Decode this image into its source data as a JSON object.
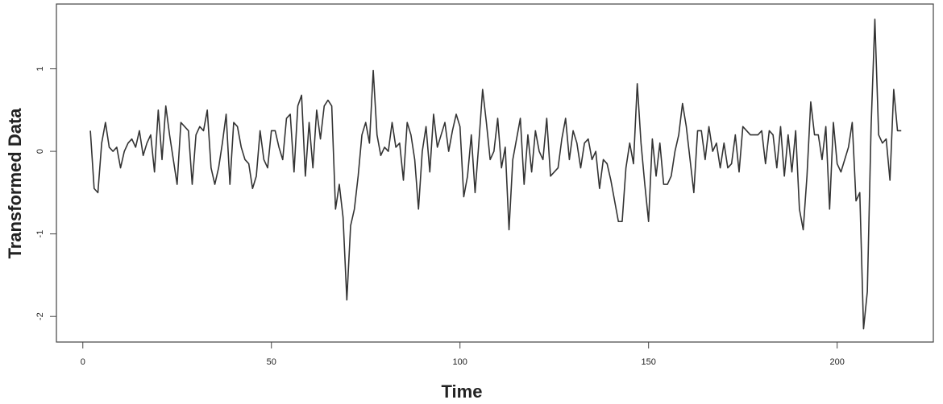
{
  "chart_data": {
    "type": "line",
    "x_label": "Time",
    "y_label": "Transformed Data",
    "xlim": [
      -7,
      225.5
    ],
    "ylim": [
      -2.31,
      1.785
    ],
    "xticks": [
      0,
      50,
      100,
      150,
      200
    ],
    "yticks": [
      -2,
      -1,
      0,
      1
    ],
    "series": [
      {
        "color": "#333333",
        "x": [
          2,
          3,
          4,
          5,
          6,
          7,
          8,
          9,
          10,
          11,
          12,
          13,
          14,
          15,
          16,
          17,
          18,
          19,
          20,
          21,
          22,
          23,
          24,
          25,
          26,
          27,
          28,
          29,
          30,
          31,
          32,
          33,
          34,
          35,
          36,
          37,
          38,
          39,
          40,
          41,
          42,
          43,
          44,
          45,
          46,
          47,
          48,
          49,
          50,
          51,
          52,
          53,
          54,
          55,
          56,
          57,
          58,
          59,
          60,
          61,
          62,
          63,
          64,
          65,
          66,
          67,
          68,
          69,
          70,
          71,
          72,
          73,
          74,
          75,
          76,
          77,
          78,
          79,
          80,
          81,
          82,
          83,
          84,
          85,
          86,
          87,
          88,
          89,
          90,
          91,
          92,
          93,
          94,
          95,
          96,
          97,
          98,
          99,
          100,
          101,
          102,
          103,
          104,
          105,
          106,
          107,
          108,
          109,
          110,
          111,
          112,
          113,
          114,
          115,
          116,
          117,
          118,
          119,
          120,
          121,
          122,
          123,
          124,
          125,
          126,
          127,
          128,
          129,
          130,
          131,
          132,
          133,
          134,
          135,
          136,
          137,
          138,
          139,
          140,
          141,
          142,
          143,
          144,
          145,
          146,
          147,
          148,
          149,
          150,
          151,
          152,
          153,
          154,
          155,
          156,
          157,
          158,
          159,
          160,
          161,
          162,
          163,
          164,
          165,
          166,
          167,
          168,
          169,
          170,
          171,
          172,
          173,
          174,
          175,
          176,
          177,
          178,
          179,
          180,
          181,
          182,
          183,
          184,
          185,
          186,
          187,
          188,
          189,
          190,
          191,
          192,
          193,
          194,
          195,
          196,
          197,
          198,
          199,
          200,
          201,
          202,
          203,
          204,
          205,
          206,
          207,
          208,
          209,
          210,
          211,
          212,
          213,
          214,
          215,
          216,
          217
        ],
        "values": [
          0.25,
          -0.45,
          -0.5,
          0.1,
          0.35,
          0.05,
          0.0,
          0.05,
          -0.2,
          0.0,
          0.1,
          0.15,
          0.05,
          0.25,
          -0.05,
          0.1,
          0.2,
          -0.25,
          0.5,
          -0.1,
          0.55,
          0.2,
          -0.1,
          -0.4,
          0.35,
          0.3,
          0.25,
          -0.4,
          0.2,
          0.3,
          0.25,
          0.5,
          -0.2,
          -0.4,
          -0.2,
          0.1,
          0.45,
          -0.4,
          0.35,
          0.3,
          0.05,
          -0.1,
          -0.15,
          -0.45,
          -0.3,
          0.25,
          -0.1,
          -0.2,
          0.25,
          0.25,
          0.05,
          -0.1,
          0.4,
          0.45,
          -0.25,
          0.55,
          0.68,
          -0.3,
          0.35,
          -0.2,
          0.5,
          0.15,
          0.55,
          0.62,
          0.55,
          -0.7,
          -0.4,
          -0.8,
          -1.8,
          -0.9,
          -0.7,
          -0.3,
          0.2,
          0.35,
          0.1,
          0.98,
          0.2,
          -0.05,
          0.05,
          0.0,
          0.35,
          0.05,
          0.1,
          -0.35,
          0.35,
          0.2,
          -0.1,
          -0.7,
          0.0,
          0.3,
          -0.25,
          0.45,
          0.05,
          0.2,
          0.35,
          0.0,
          0.25,
          0.45,
          0.3,
          -0.55,
          -0.3,
          0.2,
          -0.5,
          0.1,
          0.75,
          0.35,
          -0.1,
          0.0,
          0.4,
          -0.2,
          0.05,
          -0.95,
          -0.1,
          0.15,
          0.4,
          -0.4,
          0.2,
          -0.25,
          0.25,
          0.0,
          -0.1,
          0.4,
          -0.3,
          -0.25,
          -0.2,
          0.15,
          0.4,
          -0.1,
          0.25,
          0.1,
          -0.2,
          0.1,
          0.15,
          -0.1,
          0.0,
          -0.45,
          -0.1,
          -0.15,
          -0.35,
          -0.6,
          -0.85,
          -0.85,
          -0.2,
          0.1,
          -0.15,
          0.82,
          0.1,
          -0.4,
          -0.85,
          0.15,
          -0.3,
          0.1,
          -0.4,
          -0.4,
          -0.3,
          0.0,
          0.2,
          0.58,
          0.3,
          -0.1,
          -0.5,
          0.25,
          0.25,
          -0.1,
          0.3,
          0.0,
          0.1,
          -0.2,
          0.1,
          -0.2,
          -0.15,
          0.2,
          -0.25,
          0.3,
          0.25,
          0.2,
          0.2,
          0.2,
          0.25,
          -0.15,
          0.25,
          0.2,
          -0.2,
          0.3,
          -0.3,
          0.2,
          -0.25,
          0.25,
          -0.7,
          -0.95,
          -0.3,
          0.6,
          0.2,
          0.2,
          -0.1,
          0.3,
          -0.7,
          0.35,
          -0.15,
          -0.25,
          -0.1,
          0.05,
          0.35,
          -0.6,
          -0.5,
          -2.15,
          -1.7,
          0.3,
          1.6,
          0.2,
          0.1,
          0.15,
          -0.35,
          0.75,
          0.25,
          0.25
        ]
      }
    ]
  }
}
